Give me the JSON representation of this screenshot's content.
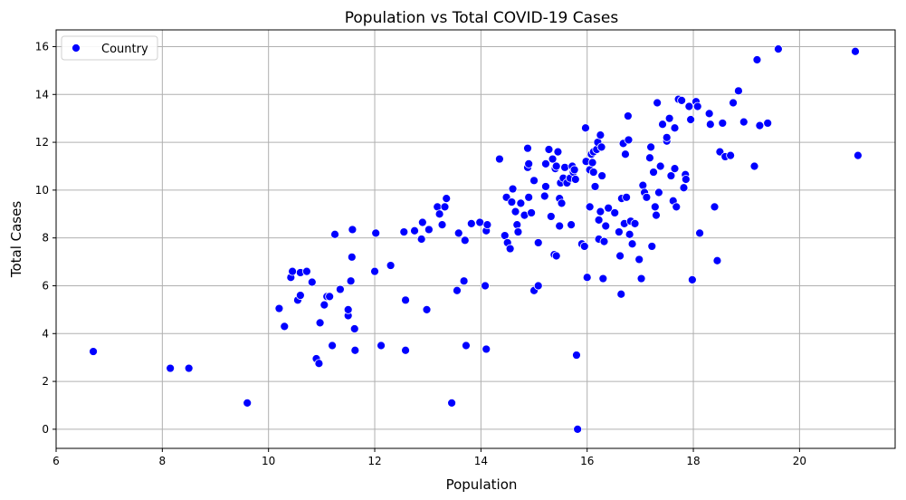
{
  "chart_data": {
    "type": "scatter",
    "title": "Population vs Total COVID-19 Cases",
    "xlabel": "Population",
    "ylabel": "Total Cases",
    "xlim": [
      6,
      21.8
    ],
    "ylim": [
      -0.8,
      16.7
    ],
    "xticks": [
      6,
      8,
      10,
      12,
      14,
      16,
      18,
      20
    ],
    "yticks": [
      0,
      2,
      4,
      6,
      8,
      10,
      12,
      14,
      16
    ],
    "grid": true,
    "legend": {
      "position": "top-left",
      "entries": [
        "Country"
      ]
    },
    "series": [
      {
        "name": "Country",
        "color": "#0000ff",
        "edge_color": "#ffffff",
        "marker": "circle",
        "points": [
          [
            6.7,
            3.25
          ],
          [
            8.15,
            2.55
          ],
          [
            8.5,
            2.55
          ],
          [
            9.6,
            1.1
          ],
          [
            10.2,
            5.05
          ],
          [
            10.3,
            4.3
          ],
          [
            10.42,
            6.35
          ],
          [
            10.45,
            6.6
          ],
          [
            10.55,
            5.4
          ],
          [
            10.6,
            5.6
          ],
          [
            10.6,
            6.55
          ],
          [
            10.72,
            6.6
          ],
          [
            10.82,
            6.15
          ],
          [
            10.9,
            2.95
          ],
          [
            10.95,
            2.75
          ],
          [
            10.97,
            4.45
          ],
          [
            11.05,
            5.2
          ],
          [
            11.1,
            5.55
          ],
          [
            11.15,
            5.55
          ],
          [
            11.2,
            3.5
          ],
          [
            11.25,
            8.15
          ],
          [
            11.35,
            5.85
          ],
          [
            11.5,
            4.75
          ],
          [
            11.5,
            5.0
          ],
          [
            11.55,
            6.2
          ],
          [
            11.57,
            7.2
          ],
          [
            11.58,
            8.35
          ],
          [
            11.62,
            4.2
          ],
          [
            11.63,
            3.3
          ],
          [
            12.0,
            6.6
          ],
          [
            12.02,
            8.2
          ],
          [
            12.12,
            3.5
          ],
          [
            12.3,
            6.85
          ],
          [
            12.55,
            8.25
          ],
          [
            12.58,
            5.4
          ],
          [
            12.58,
            3.3
          ],
          [
            12.75,
            8.3
          ],
          [
            12.88,
            7.95
          ],
          [
            12.9,
            8.65
          ],
          [
            12.98,
            5.0
          ],
          [
            13.02,
            8.35
          ],
          [
            13.18,
            9.3
          ],
          [
            13.22,
            9.0
          ],
          [
            13.27,
            8.55
          ],
          [
            13.32,
            9.3
          ],
          [
            13.35,
            9.65
          ],
          [
            13.45,
            1.1
          ],
          [
            13.55,
            5.8
          ],
          [
            13.58,
            8.2
          ],
          [
            13.68,
            6.2
          ],
          [
            13.7,
            7.9
          ],
          [
            13.72,
            3.5
          ],
          [
            13.82,
            8.6
          ],
          [
            13.98,
            8.65
          ],
          [
            14.08,
            6.0
          ],
          [
            14.1,
            8.3
          ],
          [
            14.1,
            3.35
          ],
          [
            14.12,
            8.55
          ],
          [
            14.35,
            11.3
          ],
          [
            14.45,
            8.1
          ],
          [
            14.48,
            9.7
          ],
          [
            14.5,
            7.8
          ],
          [
            14.55,
            7.55
          ],
          [
            14.58,
            9.5
          ],
          [
            14.6,
            10.05
          ],
          [
            14.65,
            9.1
          ],
          [
            14.68,
            8.55
          ],
          [
            14.7,
            8.25
          ],
          [
            14.75,
            9.45
          ],
          [
            14.82,
            8.95
          ],
          [
            14.88,
            11.75
          ],
          [
            14.88,
            10.95
          ],
          [
            14.9,
            9.7
          ],
          [
            14.9,
            11.1
          ],
          [
            14.95,
            9.05
          ],
          [
            15.0,
            10.4
          ],
          [
            15.0,
            5.8
          ],
          [
            15.08,
            6.0
          ],
          [
            15.08,
            7.8
          ],
          [
            15.2,
            9.75
          ],
          [
            15.22,
            10.15
          ],
          [
            15.22,
            11.1
          ],
          [
            15.28,
            11.7
          ],
          [
            15.32,
            8.9
          ],
          [
            15.35,
            11.3
          ],
          [
            15.38,
            7.3
          ],
          [
            15.4,
            10.9
          ],
          [
            15.42,
            7.25
          ],
          [
            15.42,
            11.0
          ],
          [
            15.45,
            11.6
          ],
          [
            15.48,
            8.5
          ],
          [
            15.48,
            9.65
          ],
          [
            15.5,
            10.3
          ],
          [
            15.52,
            9.45
          ],
          [
            15.55,
            10.5
          ],
          [
            15.58,
            10.95
          ],
          [
            15.62,
            10.3
          ],
          [
            15.68,
            10.5
          ],
          [
            15.7,
            8.55
          ],
          [
            15.72,
            11.0
          ],
          [
            15.74,
            10.75
          ],
          [
            15.76,
            10.85
          ],
          [
            15.78,
            10.45
          ],
          [
            15.8,
            3.1
          ],
          [
            15.82,
            0.0
          ],
          [
            15.9,
            7.75
          ],
          [
            15.95,
            7.65
          ],
          [
            15.97,
            12.6
          ],
          [
            15.98,
            11.2
          ],
          [
            16.0,
            6.35
          ],
          [
            16.05,
            9.3
          ],
          [
            16.05,
            10.85
          ],
          [
            16.08,
            11.5
          ],
          [
            16.1,
            11.15
          ],
          [
            16.12,
            11.6
          ],
          [
            16.12,
            10.75
          ],
          [
            16.15,
            10.15
          ],
          [
            16.18,
            11.7
          ],
          [
            16.2,
            12.0
          ],
          [
            16.22,
            8.75
          ],
          [
            16.22,
            7.95
          ],
          [
            16.25,
            12.3
          ],
          [
            16.25,
            9.1
          ],
          [
            16.27,
            11.8
          ],
          [
            16.28,
            10.6
          ],
          [
            16.3,
            6.3
          ],
          [
            16.32,
            7.85
          ],
          [
            16.35,
            8.5
          ],
          [
            16.4,
            9.25
          ],
          [
            16.52,
            9.05
          ],
          [
            16.6,
            8.25
          ],
          [
            16.62,
            7.25
          ],
          [
            16.64,
            5.65
          ],
          [
            16.65,
            9.65
          ],
          [
            16.68,
            11.95
          ],
          [
            16.7,
            8.6
          ],
          [
            16.72,
            11.5
          ],
          [
            16.74,
            9.7
          ],
          [
            16.77,
            13.1
          ],
          [
            16.78,
            12.1
          ],
          [
            16.8,
            8.15
          ],
          [
            16.82,
            8.7
          ],
          [
            16.85,
            7.75
          ],
          [
            16.9,
            8.6
          ],
          [
            16.98,
            7.1
          ],
          [
            17.02,
            6.3
          ],
          [
            17.05,
            10.2
          ],
          [
            17.08,
            9.9
          ],
          [
            17.12,
            9.7
          ],
          [
            17.18,
            11.35
          ],
          [
            17.2,
            11.8
          ],
          [
            17.22,
            7.65
          ],
          [
            17.25,
            10.75
          ],
          [
            17.28,
            9.3
          ],
          [
            17.3,
            8.95
          ],
          [
            17.32,
            13.65
          ],
          [
            17.35,
            9.9
          ],
          [
            17.38,
            11.0
          ],
          [
            17.42,
            12.75
          ],
          [
            17.5,
            12.05
          ],
          [
            17.5,
            12.2
          ],
          [
            17.55,
            13.0
          ],
          [
            17.58,
            10.6
          ],
          [
            17.62,
            9.55
          ],
          [
            17.65,
            12.6
          ],
          [
            17.65,
            10.9
          ],
          [
            17.68,
            9.3
          ],
          [
            17.72,
            13.8
          ],
          [
            17.78,
            13.75
          ],
          [
            17.82,
            10.1
          ],
          [
            17.85,
            10.65
          ],
          [
            17.86,
            10.45
          ],
          [
            17.92,
            13.5
          ],
          [
            17.95,
            12.95
          ],
          [
            17.98,
            6.25
          ],
          [
            18.05,
            13.7
          ],
          [
            18.08,
            13.5
          ],
          [
            18.12,
            8.2
          ],
          [
            18.3,
            13.2
          ],
          [
            18.32,
            12.75
          ],
          [
            18.4,
            9.3
          ],
          [
            18.45,
            7.05
          ],
          [
            18.5,
            11.6
          ],
          [
            18.55,
            12.8
          ],
          [
            18.6,
            11.4
          ],
          [
            18.7,
            11.45
          ],
          [
            18.75,
            13.65
          ],
          [
            18.85,
            14.15
          ],
          [
            18.95,
            12.85
          ],
          [
            19.15,
            11.0
          ],
          [
            19.2,
            15.45
          ],
          [
            19.25,
            12.7
          ],
          [
            19.4,
            12.8
          ],
          [
            19.6,
            15.9
          ],
          [
            21.05,
            15.8
          ],
          [
            21.1,
            11.45
          ]
        ]
      }
    ]
  }
}
